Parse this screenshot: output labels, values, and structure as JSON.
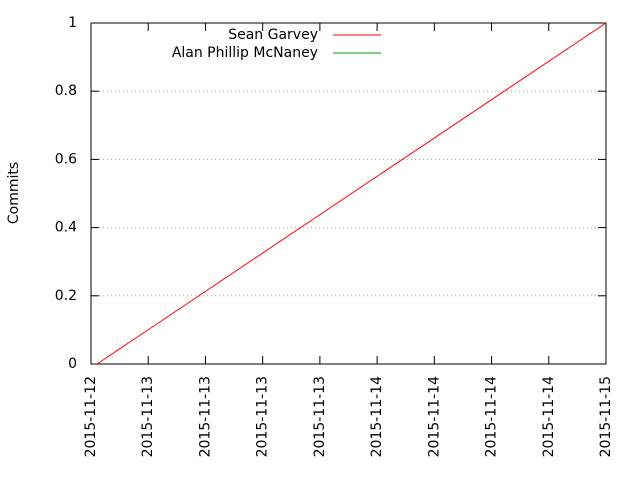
{
  "chart_data": {
    "type": "line",
    "ylabel": "Commits",
    "series": [
      {
        "name": "Sean Garvey",
        "color": "#ff0000",
        "x": [
          "2015-11-12T18:38",
          "2015-11-15T00:00"
        ],
        "values": [
          0,
          1
        ]
      },
      {
        "name": "Alan Phillip McNaney",
        "color": "#00a000",
        "x": [],
        "values": []
      }
    ],
    "xlim": [
      "2015-11-12T18:00",
      "2015-11-15T00:00"
    ],
    "xticks": [
      {
        "value": "2015-11-12T18:00",
        "label": "2015-11-12"
      },
      {
        "value": "2015-11-13T00:00",
        "label": "2015-11-13"
      },
      {
        "value": "2015-11-13T06:00",
        "label": "2015-11-13"
      },
      {
        "value": "2015-11-13T12:00",
        "label": "2015-11-13"
      },
      {
        "value": "2015-11-13T18:00",
        "label": "2015-11-13"
      },
      {
        "value": "2015-11-14T00:00",
        "label": "2015-11-14"
      },
      {
        "value": "2015-11-14T06:00",
        "label": "2015-11-14"
      },
      {
        "value": "2015-11-14T12:00",
        "label": "2015-11-14"
      },
      {
        "value": "2015-11-14T18:00",
        "label": "2015-11-14"
      },
      {
        "value": "2015-11-15T00:00",
        "label": "2015-11-15"
      }
    ],
    "ylim": [
      0,
      1
    ],
    "yticks": [
      0,
      0.2,
      0.4,
      0.6,
      0.8,
      1
    ],
    "grid": true,
    "legend": "top"
  }
}
